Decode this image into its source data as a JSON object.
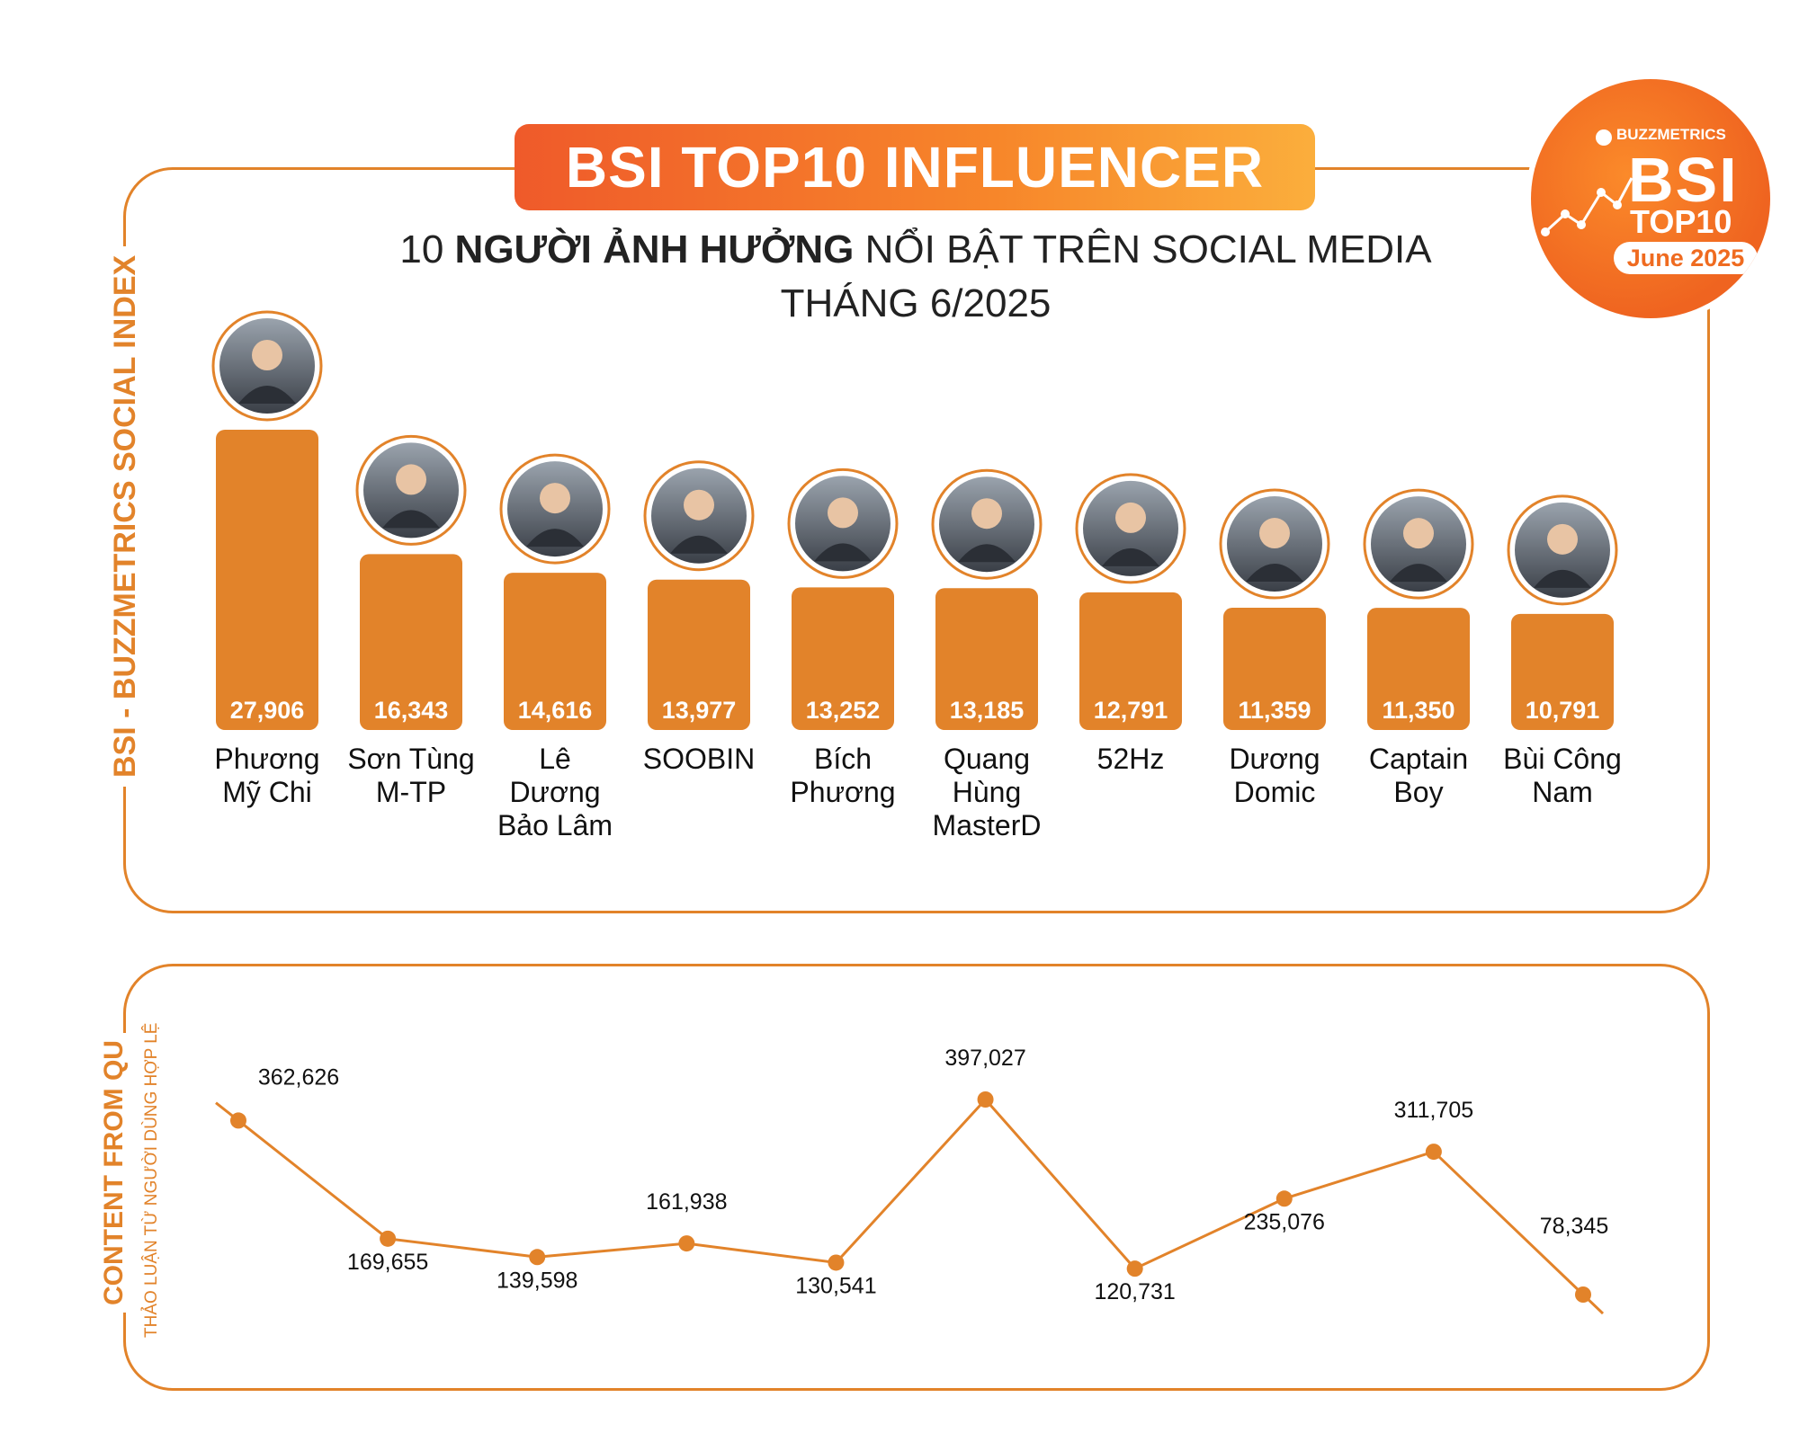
{
  "header": {
    "title": "BSI TOP10 INFLUENCER",
    "subtitle_part1": "10 ",
    "subtitle_bold": "NGƯỜI ẢNH HƯỞNG",
    "subtitle_part2": " NỔI BẬT TRÊN SOCIAL MEDIA",
    "subtitle_line2": "THÁNG 6/2025"
  },
  "badge": {
    "brand": "BUZZMETRICS",
    "bsi": "BSI",
    "top10": "TOP10",
    "month": "June 2025"
  },
  "colors": {
    "accent": "#e2832a",
    "bar": "#e2832a",
    "gradient_start": "#ef5a2a",
    "gradient_end": "#fbae3c"
  },
  "chart_data": [
    {
      "type": "bar",
      "ylabel": "BSI - BUZZMETRICS SOCIAL INDEX",
      "categories": [
        [
          "Phương",
          "Mỹ Chi"
        ],
        [
          "Sơn Tùng",
          "M-TP"
        ],
        [
          "Lê",
          "Dương",
          "Bảo Lâm"
        ],
        [
          "SOOBIN"
        ],
        [
          "Bích",
          "Phương"
        ],
        [
          "Quang",
          "Hùng",
          "MasterD"
        ],
        [
          "52Hz"
        ],
        [
          "Dương",
          "Domic"
        ],
        [
          "Captain",
          "Boy"
        ],
        [
          "Bùi Công",
          "Nam"
        ]
      ],
      "values": [
        27906,
        16343,
        14616,
        13977,
        13252,
        13185,
        12791,
        11359,
        11350,
        10791
      ],
      "value_labels": [
        "27,906",
        "16,343",
        "14,616",
        "13,977",
        "13,252",
        "13,185",
        "12,791",
        "11,359",
        "11,350",
        "10,791"
      ],
      "avatar_icon": "person-avatar-icon"
    },
    {
      "type": "line",
      "ylabel": "CONTENT FROM QU",
      "ylabel_sub": "THẢO LUẬN TỪ NGƯỜI DÙNG HỢP LỆ",
      "values": [
        362626,
        169655,
        139598,
        161938,
        130541,
        397027,
        120731,
        235076,
        311705,
        78345
      ],
      "value_labels": [
        "362,626",
        "169,655",
        "139,598",
        "161,938",
        "130,541",
        "397,027",
        "120,731",
        "235,076",
        "311,705",
        "78,345"
      ]
    }
  ]
}
